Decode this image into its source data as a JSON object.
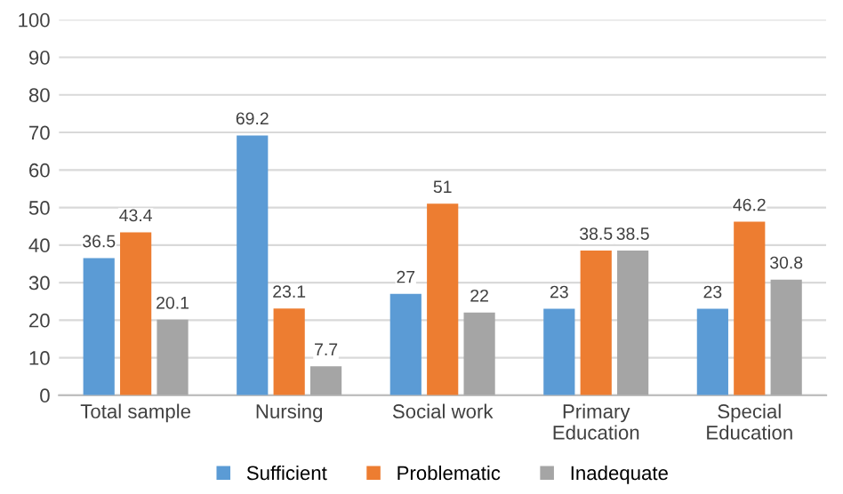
{
  "chart_data": {
    "type": "bar",
    "categories": [
      "Total sample",
      "Nursing",
      "Social work",
      "Primary\nEducation",
      "Special\nEducation"
    ],
    "series": [
      {
        "name": "Sufficient",
        "color": "#5b9bd5",
        "values": [
          36.5,
          69.2,
          27,
          23,
          23
        ]
      },
      {
        "name": "Problematic",
        "color": "#ed7d31",
        "values": [
          43.4,
          23.1,
          51,
          38.5,
          46.2
        ]
      },
      {
        "name": "Inadequate",
        "color": "#a5a5a5",
        "values": [
          20.1,
          7.7,
          22,
          38.5,
          30.8
        ]
      }
    ],
    "ylim": [
      0,
      100
    ],
    "yticks": [
      0,
      10,
      20,
      30,
      40,
      50,
      60,
      70,
      80,
      90,
      100
    ],
    "grid": "y",
    "legend": "bottom",
    "data_labels": true
  }
}
